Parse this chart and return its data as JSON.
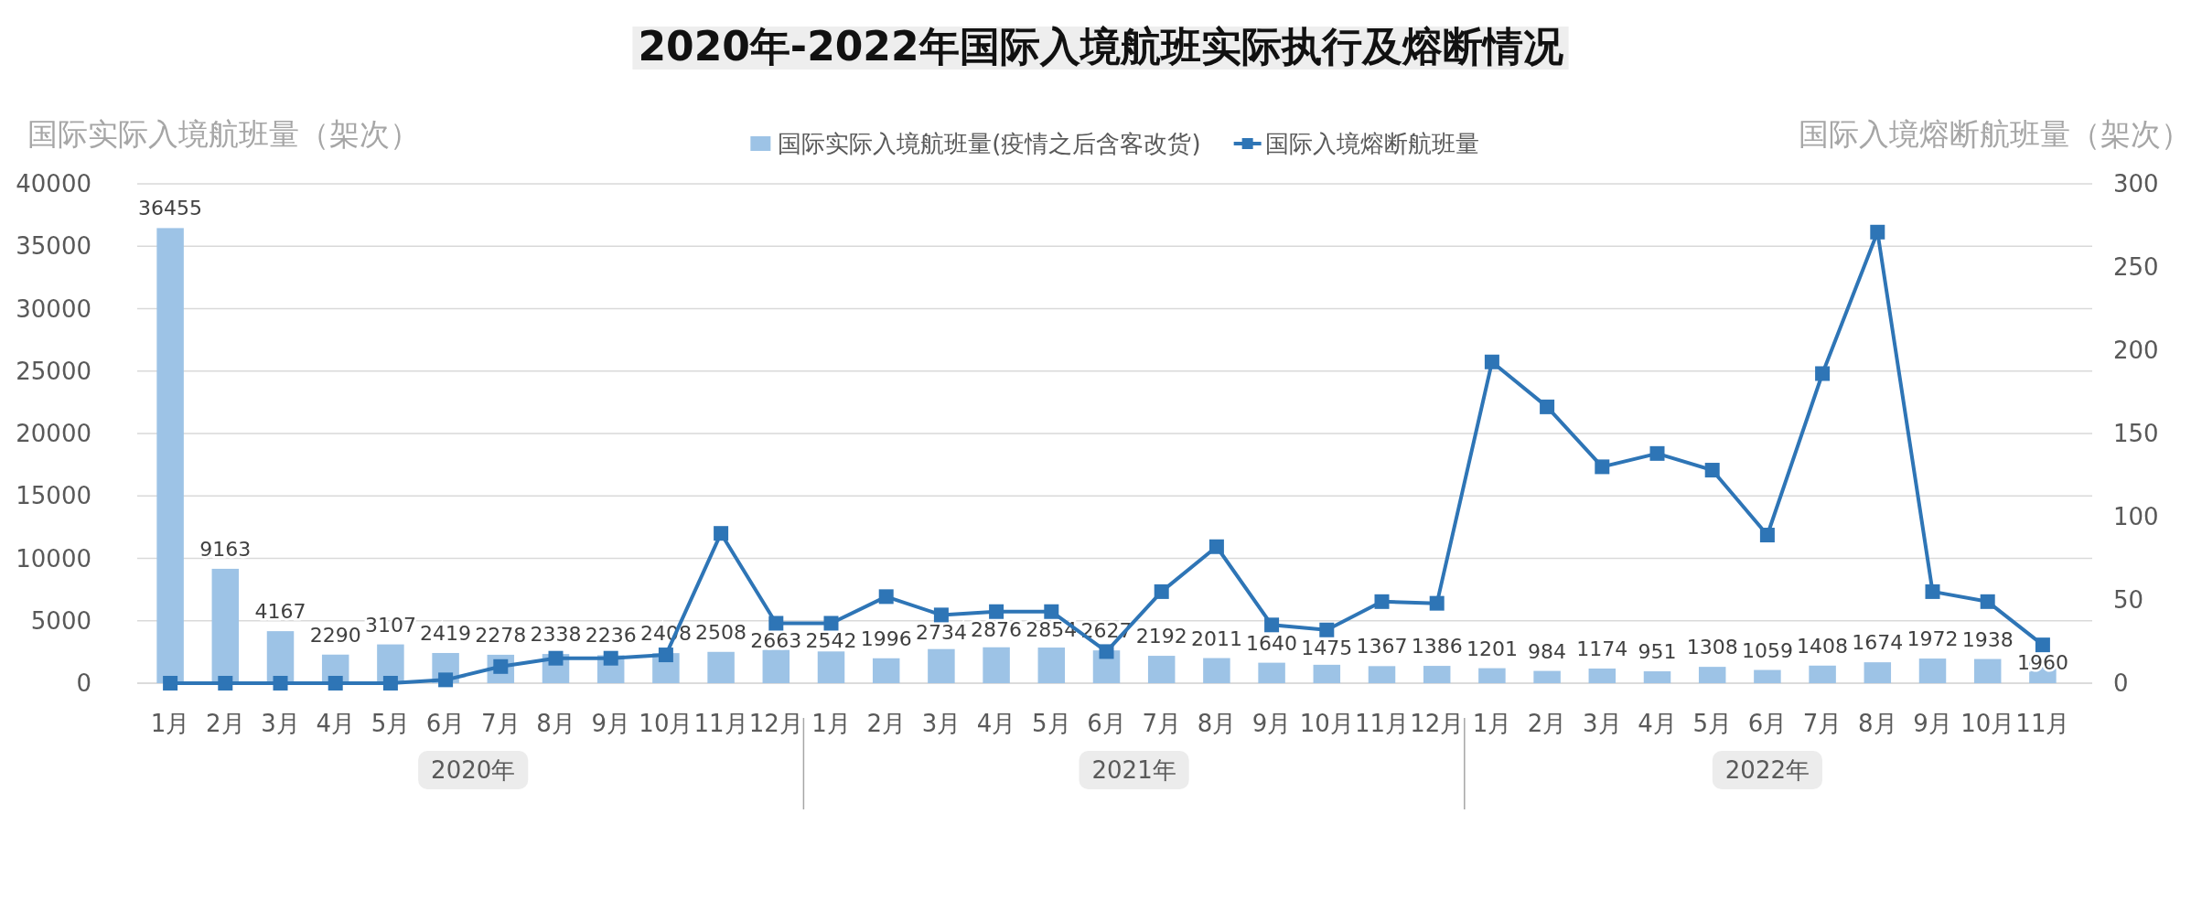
{
  "chart_data": {
    "type": "bar",
    "title": "2020年-2022年国际入境航班实际执行及熔断情况",
    "ylabel": "国际实际入境航班量（架次）",
    "y2label": "国际入境熔断航班量（架次）",
    "categories": [
      "1月",
      "2月",
      "3月",
      "4月",
      "5月",
      "6月",
      "7月",
      "8月",
      "9月",
      "10月",
      "11月",
      "12月",
      "1月",
      "2月",
      "3月",
      "4月",
      "5月",
      "6月",
      "7月",
      "8月",
      "9月",
      "10月",
      "11月",
      "12月",
      "1月",
      "2月",
      "3月",
      "4月",
      "5月",
      "6月",
      "7月",
      "8月",
      "9月",
      "10月",
      "11月"
    ],
    "series": [
      {
        "name": "国际实际入境航班量(疫情之后含客改货)",
        "color": "#9dc3e6",
        "values": [
          36455,
          9163,
          4167,
          2290,
          3107,
          2419,
          2278,
          2338,
          2236,
          2408,
          2508,
          2663,
          2542,
          1996,
          2734,
          2876,
          2854,
          2627,
          2192,
          2011,
          1640,
          1475,
          1367,
          1386,
          1201,
          984,
          1174,
          951,
          1308,
          1059,
          1408,
          1674,
          1972,
          1938,
          1960
        ],
        "value_labels": [
          "36455",
          "9163",
          "4167",
          "2290",
          "3107",
          "2419",
          "2278",
          "2338",
          "2236",
          "2408",
          "2508",
          "2663",
          "2542",
          "1996",
          "2734",
          "2876",
          "2854",
          "2627",
          "2192",
          "2011",
          "1640",
          "1475",
          "1367",
          "1386",
          "1201",
          "984",
          "1174",
          "951",
          "1308",
          "1059",
          "1408",
          "1674",
          "1972",
          "1938",
          "1960"
        ]
      },
      {
        "name": "国际入境熔断航班量",
        "type": "line",
        "axis": "y2",
        "color": "#2e75b6",
        "marker": "square",
        "values": [
          0,
          0,
          0,
          0,
          0,
          2,
          10,
          15,
          15,
          17,
          90,
          36,
          36,
          52,
          41,
          43,
          43,
          19,
          55,
          82,
          35,
          32,
          49,
          48,
          193,
          166,
          130,
          138,
          128,
          89,
          186,
          271,
          55,
          49,
          23
        ]
      }
    ],
    "ylim": [
      0,
      40000
    ],
    "yticks": [
      0,
      5000,
      10000,
      15000,
      20000,
      25000,
      30000,
      35000,
      40000
    ],
    "y2lim": [
      0,
      300
    ],
    "y2ticks": [
      0,
      50,
      100,
      150,
      200,
      250,
      300
    ],
    "grid": "y",
    "legend": "top",
    "annotations": [
      "2020年",
      "2021年",
      "2022年"
    ]
  }
}
